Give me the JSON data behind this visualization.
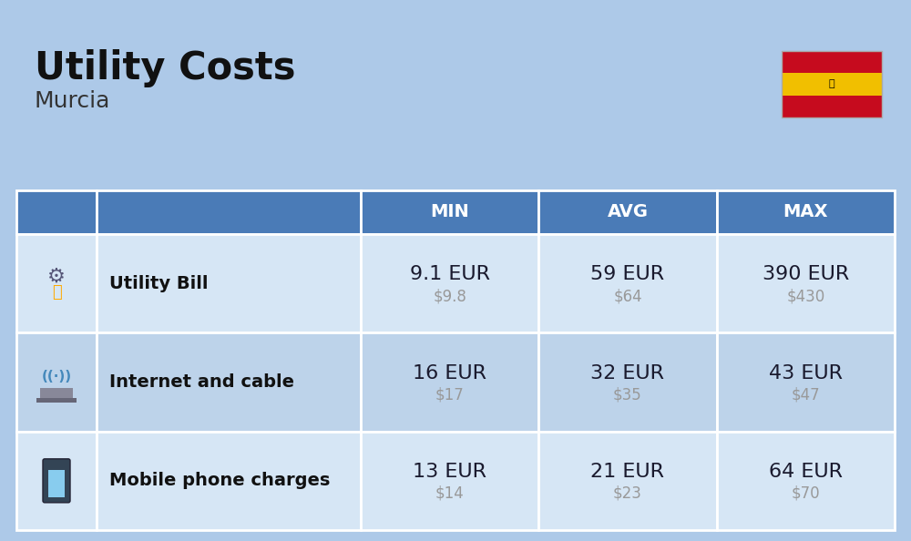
{
  "title": "Utility Costs",
  "subtitle": "Murcia",
  "background_color": "#adc9e8",
  "header_color": "#4a7bb7",
  "header_text_color": "#ffffff",
  "row_color_light": "#d6e6f5",
  "row_color_dark": "#bdd3ea",
  "table_border_color": "#ffffff",
  "rows": [
    {
      "label": "Utility Bill",
      "min_eur": "9.1 EUR",
      "min_usd": "$9.8",
      "avg_eur": "59 EUR",
      "avg_usd": "$64",
      "max_eur": "390 EUR",
      "max_usd": "$430",
      "icon": "utility"
    },
    {
      "label": "Internet and cable",
      "min_eur": "16 EUR",
      "min_usd": "$17",
      "avg_eur": "32 EUR",
      "avg_usd": "$35",
      "max_eur": "43 EUR",
      "max_usd": "$47",
      "icon": "internet"
    },
    {
      "label": "Mobile phone charges",
      "min_eur": "13 EUR",
      "min_usd": "$14",
      "avg_eur": "21 EUR",
      "avg_usd": "$23",
      "max_eur": "64 EUR",
      "max_usd": "$70",
      "icon": "mobile"
    }
  ],
  "col_headers": [
    "MIN",
    "AVG",
    "MAX"
  ],
  "title_fontsize": 30,
  "subtitle_fontsize": 18,
  "header_fontsize": 14,
  "label_fontsize": 14,
  "value_fontsize": 16,
  "usd_fontsize": 12,
  "flag_red": "#c60b1e",
  "flag_yellow": "#f1bf00",
  "value_color": "#1a1a2e",
  "usd_color": "#999999",
  "label_color": "#111111"
}
